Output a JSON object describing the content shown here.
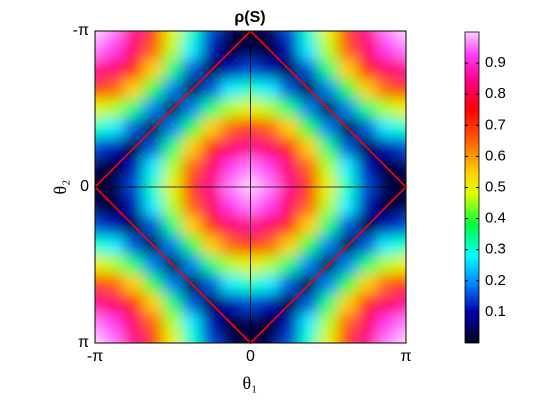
{
  "chart_data": {
    "type": "heatmap",
    "title": "ρ(S)",
    "xlabel": "θ₁",
    "ylabel": "θ₂",
    "xlim": [
      -3.1416,
      3.1416
    ],
    "ylim": [
      -3.1416,
      3.1416
    ],
    "ydir": "reverse",
    "xticks": [
      {
        "value": -3.1416,
        "label": "-π"
      },
      0,
      {
        "value": 3.1416,
        "label": "π"
      }
    ],
    "yticks": [
      {
        "value": -3.1416,
        "label": "-π"
      },
      0,
      {
        "value": 3.1416,
        "label": "π"
      }
    ],
    "zero_lines": true,
    "x": [
      -3.1416,
      -2.7489,
      -2.3562,
      -1.9635,
      -1.5708,
      -1.1781,
      -0.7854,
      -0.3927,
      0,
      0.3927,
      0.7854,
      1.1781,
      1.5708,
      1.9635,
      2.3562,
      2.7489,
      3.1416
    ],
    "y": [
      -3.1416,
      -2.7489,
      -2.3562,
      -1.9635,
      -1.5708,
      -1.1781,
      -0.7854,
      -0.3927,
      0,
      0.3927,
      0.7854,
      1.1781,
      1.5708,
      1.9635,
      2.3562,
      2.7489,
      3.1416
    ],
    "z": [
      [
        1,
        0.96,
        0.85,
        0.69,
        0.5,
        0.31,
        0.15,
        0.04,
        0,
        0.04,
        0.15,
        0.31,
        0.5,
        0.69,
        0.85,
        0.96,
        1
      ],
      [
        0.96,
        0.92,
        0.82,
        0.65,
        0.46,
        0.27,
        0.11,
        0,
        0.04,
        0,
        0.11,
        0.27,
        0.46,
        0.65,
        0.82,
        0.92,
        0.96
      ],
      [
        0.85,
        0.82,
        0.71,
        0.55,
        0.35,
        0.16,
        0,
        0.11,
        0.15,
        0.11,
        0,
        0.16,
        0.35,
        0.55,
        0.71,
        0.82,
        0.85
      ],
      [
        0.69,
        0.65,
        0.55,
        0.38,
        0.19,
        0,
        0.16,
        0.27,
        0.31,
        0.27,
        0.16,
        0,
        0.19,
        0.38,
        0.55,
        0.65,
        0.69
      ],
      [
        0.5,
        0.46,
        0.35,
        0.19,
        0,
        0.19,
        0.35,
        0.46,
        0.5,
        0.46,
        0.35,
        0.19,
        0,
        0.19,
        0.35,
        0.46,
        0.5
      ],
      [
        0.31,
        0.27,
        0.16,
        0,
        0.19,
        0.38,
        0.55,
        0.65,
        0.69,
        0.65,
        0.55,
        0.38,
        0.19,
        0,
        0.16,
        0.27,
        0.31
      ],
      [
        0.15,
        0.11,
        0,
        0.16,
        0.35,
        0.55,
        0.71,
        0.82,
        0.85,
        0.82,
        0.71,
        0.55,
        0.35,
        0.16,
        0,
        0.11,
        0.15
      ],
      [
        0.04,
        0,
        0.11,
        0.27,
        0.46,
        0.65,
        0.82,
        0.92,
        0.96,
        0.92,
        0.82,
        0.65,
        0.46,
        0.27,
        0.11,
        0,
        0.04
      ],
      [
        0,
        0.04,
        0.15,
        0.31,
        0.5,
        0.69,
        0.85,
        0.96,
        1,
        0.96,
        0.85,
        0.69,
        0.5,
        0.31,
        0.15,
        0.04,
        0
      ],
      [
        0.04,
        0,
        0.11,
        0.27,
        0.46,
        0.65,
        0.82,
        0.92,
        0.96,
        0.92,
        0.82,
        0.65,
        0.46,
        0.27,
        0.11,
        0,
        0.04
      ],
      [
        0.15,
        0.11,
        0,
        0.16,
        0.35,
        0.55,
        0.71,
        0.82,
        0.85,
        0.82,
        0.71,
        0.55,
        0.35,
        0.16,
        0,
        0.11,
        0.15
      ],
      [
        0.31,
        0.27,
        0.16,
        0,
        0.19,
        0.38,
        0.55,
        0.65,
        0.69,
        0.65,
        0.55,
        0.38,
        0.19,
        0,
        0.16,
        0.27,
        0.31
      ],
      [
        0.5,
        0.46,
        0.35,
        0.19,
        0,
        0.19,
        0.35,
        0.46,
        0.5,
        0.46,
        0.35,
        0.19,
        0,
        0.19,
        0.35,
        0.46,
        0.5
      ],
      [
        0.69,
        0.65,
        0.55,
        0.38,
        0.19,
        0,
        0.16,
        0.27,
        0.31,
        0.27,
        0.16,
        0,
        0.19,
        0.38,
        0.55,
        0.65,
        0.69
      ],
      [
        0.85,
        0.82,
        0.71,
        0.55,
        0.35,
        0.16,
        0,
        0.11,
        0.15,
        0.11,
        0,
        0.16,
        0.35,
        0.55,
        0.71,
        0.82,
        0.85
      ],
      [
        0.96,
        0.92,
        0.82,
        0.65,
        0.46,
        0.27,
        0.11,
        0,
        0.04,
        0,
        0.11,
        0.27,
        0.46,
        0.65,
        0.82,
        0.92,
        0.96
      ],
      [
        1,
        0.96,
        0.85,
        0.69,
        0.5,
        0.31,
        0.15,
        0.04,
        0,
        0.04,
        0.15,
        0.31,
        0.5,
        0.69,
        0.85,
        0.96,
        1
      ]
    ],
    "clim": [
      0,
      1
    ],
    "colorbar_ticks": [
      0.1,
      0.2,
      0.3,
      0.4,
      0.5,
      0.6,
      0.7,
      0.8,
      0.9
    ],
    "colormap": [
      [
        0,
        "#00001a"
      ],
      [
        0.1,
        "#0000b0"
      ],
      [
        0.2,
        "#0090ff"
      ],
      [
        0.28,
        "#00ffff"
      ],
      [
        0.38,
        "#00ff40"
      ],
      [
        0.48,
        "#e0ff00"
      ],
      [
        0.55,
        "#ffd000"
      ],
      [
        0.65,
        "#ff6000"
      ],
      [
        0.75,
        "#ff0000"
      ],
      [
        0.85,
        "#ff0090"
      ],
      [
        0.93,
        "#ff40ff"
      ],
      [
        1,
        "#ffd0ff"
      ]
    ],
    "outline": {
      "color": "#ff0000",
      "x": [
        0,
        3.1416,
        0,
        -3.1416,
        0
      ],
      "y": [
        -3.1416,
        0,
        3.1416,
        0,
        -3.1416
      ]
    }
  }
}
